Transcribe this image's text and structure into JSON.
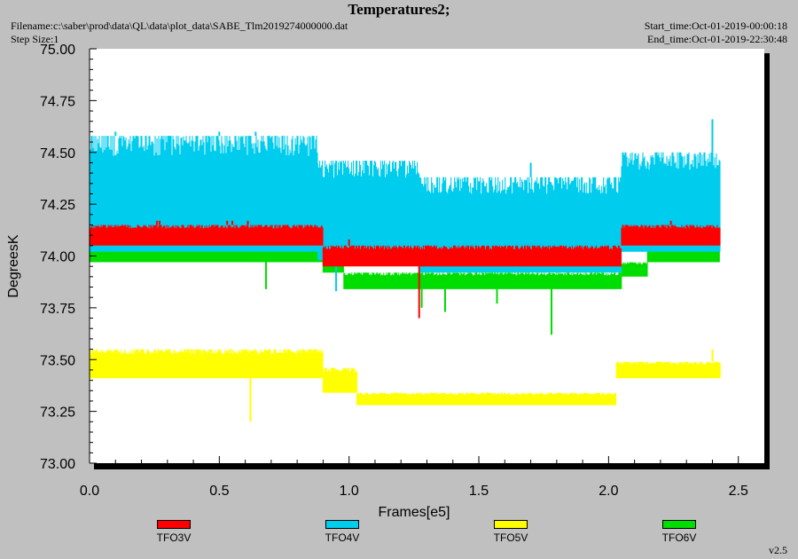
{
  "header": {
    "filename": "Filename:c:\\saber\\prod\\data\\QL\\data\\plot_data\\SABE_Tlm2019274000000.dat",
    "step_size": "Step Size:1",
    "start_time": "Start_time:Oct-01-2019-00:00:18",
    "end_time": "End_time:Oct-01-2019-22:30:48",
    "version": "v2.5"
  },
  "chart_data": {
    "type": "line",
    "title": "Temperatures2;",
    "xlabel": "Frames[e5]",
    "ylabel": "DegreesK",
    "xlim": [
      0,
      2.6
    ],
    "ylim": [
      73.0,
      75.0
    ],
    "xticks": [
      "0.0",
      "0.5",
      "1.0",
      "1.5",
      "2.0",
      "2.5"
    ],
    "yticks": [
      "73.00",
      "73.25",
      "73.50",
      "73.75",
      "74.00",
      "74.25",
      "74.50",
      "74.75",
      "75.00"
    ],
    "legend_position": "bottom",
    "series": [
      {
        "name": "TFO3V",
        "color": "#ff0000",
        "segments": [
          [
            0.0,
            0.9,
            74.05,
            74.15
          ],
          [
            0.9,
            2.05,
            73.95,
            74.05
          ],
          [
            2.05,
            2.43,
            74.05,
            74.15
          ]
        ],
        "spikes": [
          [
            0.26,
            74.17
          ],
          [
            0.27,
            74.17
          ],
          [
            0.53,
            74.17
          ],
          [
            0.55,
            74.17
          ],
          [
            0.61,
            74.17
          ],
          [
            0.62,
            74.15
          ],
          [
            0.84,
            74.1
          ],
          [
            1.0,
            74.08
          ],
          [
            1.27,
            73.7
          ],
          [
            1.63,
            73.95
          ],
          [
            1.73,
            74.0
          ],
          [
            2.07,
            74.08
          ],
          [
            2.24,
            74.17
          ]
        ]
      },
      {
        "name": "TFO4V",
        "color": "#00ccee",
        "segments": [
          [
            0.0,
            0.88,
            74.02,
            74.58
          ],
          [
            0.88,
            1.27,
            73.98,
            74.46
          ],
          [
            1.27,
            2.05,
            73.92,
            74.38
          ],
          [
            2.05,
            2.43,
            74.02,
            74.5
          ]
        ],
        "spikes": [
          [
            0.1,
            74.6
          ],
          [
            0.5,
            74.6
          ],
          [
            0.64,
            74.6
          ],
          [
            0.95,
            73.83
          ],
          [
            1.7,
            74.45
          ],
          [
            2.4,
            74.66
          ]
        ]
      },
      {
        "name": "TFO5V",
        "color": "#ffff00",
        "segments": [
          [
            0.0,
            0.9,
            73.41,
            73.55
          ],
          [
            0.9,
            1.03,
            73.34,
            73.46
          ],
          [
            1.03,
            2.03,
            73.28,
            73.34
          ],
          [
            2.03,
            2.43,
            73.41,
            73.49
          ]
        ],
        "spikes": [
          [
            0.62,
            73.2
          ],
          [
            2.4,
            73.55
          ]
        ]
      },
      {
        "name": "TFO6V",
        "color": "#00dd00",
        "segments": [
          [
            0.0,
            0.9,
            73.97,
            74.05
          ],
          [
            0.9,
            0.98,
            73.92,
            73.97
          ],
          [
            0.98,
            2.05,
            73.84,
            73.92
          ],
          [
            2.05,
            2.15,
            73.9,
            73.97
          ],
          [
            2.15,
            2.43,
            73.97,
            74.04
          ]
        ],
        "spikes": [
          [
            0.68,
            73.84
          ],
          [
            1.28,
            73.75
          ],
          [
            1.37,
            73.73
          ],
          [
            1.78,
            73.62
          ],
          [
            1.57,
            73.77
          ]
        ]
      }
    ]
  }
}
